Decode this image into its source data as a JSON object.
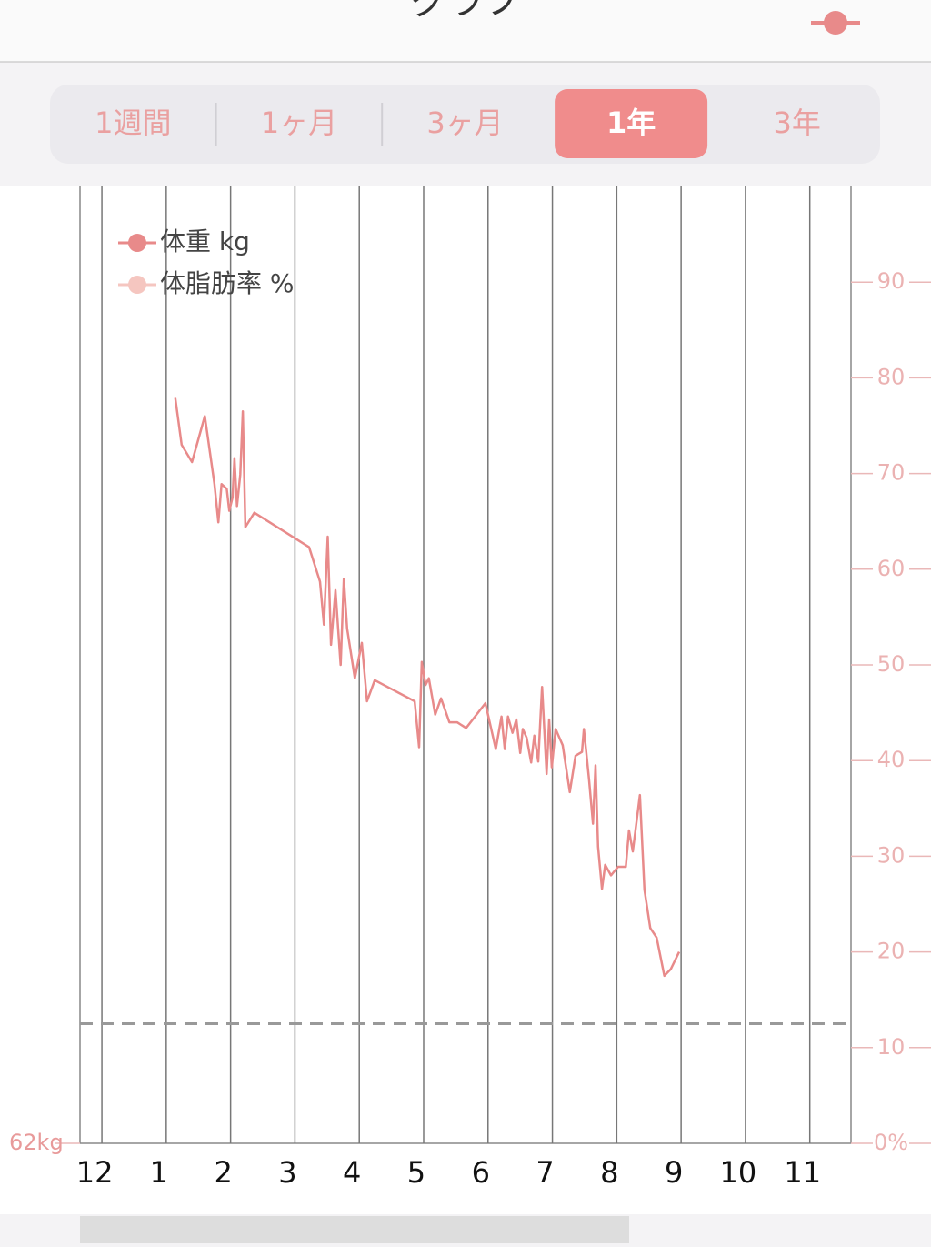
{
  "header": {
    "title": "グラフ"
  },
  "tabs": {
    "labels": [
      "1週間",
      "1ヶ月",
      "3ヶ月",
      "1年",
      "3年"
    ],
    "selected": 3
  },
  "chart_data": {
    "type": "line",
    "left_axis_label": "62kg",
    "xlim": [
      -0.34,
      11.64
    ],
    "xticks": [
      {
        "value": 0,
        "label": "12"
      },
      1,
      2,
      3,
      4,
      5,
      6,
      7,
      8,
      9,
      10,
      11
    ],
    "ylim": [
      0,
      100
    ],
    "yticks": [
      {
        "value": 0,
        "label": "0%"
      },
      10,
      20,
      30,
      40,
      50,
      60,
      70,
      80,
      90
    ],
    "goal_line": 12.5,
    "legend_entries": [
      {
        "name": "体重 kg",
        "color": "#e88a8a"
      },
      {
        "name": "体脂肪率 %",
        "color": "#f5c6c0"
      }
    ],
    "series": [
      {
        "name": "体重 kg",
        "color": "#e88a8a",
        "x": [
          1.14,
          1.24,
          1.4,
          1.6,
          1.75,
          1.81,
          1.86,
          1.94,
          1.98,
          2.03,
          2.06,
          2.1,
          2.15,
          2.19,
          2.23,
          2.37,
          3.22,
          3.39,
          3.45,
          3.51,
          3.56,
          3.63,
          3.71,
          3.76,
          3.81,
          3.93,
          4.04,
          4.12,
          4.24,
          4.86,
          4.93,
          4.97,
          5.03,
          5.08,
          5.18,
          5.27,
          5.4,
          5.52,
          5.66,
          5.96,
          6.12,
          6.21,
          6.26,
          6.31,
          6.38,
          6.44,
          6.5,
          6.54,
          6.6,
          6.67,
          6.72,
          6.78,
          6.84,
          6.91,
          6.95,
          6.99,
          7.05,
          7.16,
          7.27,
          7.36,
          7.46,
          7.49,
          7.57,
          7.63,
          7.67,
          7.71,
          7.77,
          7.82,
          7.91,
          8.02,
          8.14,
          8.19,
          8.25,
          8.36,
          8.43,
          8.52,
          8.62,
          8.74,
          8.84,
          8.97
        ],
        "values": [
          77.9,
          73.0,
          71.2,
          76.0,
          68.9,
          64.9,
          68.9,
          68.4,
          66.1,
          67.5,
          71.6,
          66.6,
          69.9,
          76.5,
          64.4,
          65.9,
          62.3,
          58.7,
          54.2,
          63.4,
          52.1,
          57.8,
          50.0,
          59.0,
          53.8,
          48.6,
          52.3,
          46.2,
          48.4,
          46.2,
          41.4,
          50.3,
          47.9,
          48.6,
          44.8,
          46.5,
          44.0,
          44.0,
          43.4,
          46.0,
          41.2,
          44.6,
          41.2,
          44.6,
          42.9,
          44.3,
          40.8,
          43.3,
          42.4,
          39.8,
          42.6,
          39.9,
          47.7,
          38.6,
          44.3,
          39.3,
          43.3,
          41.6,
          36.7,
          40.5,
          40.9,
          43.3,
          38.0,
          33.4,
          39.5,
          31.0,
          26.6,
          29.1,
          28.0,
          28.9,
          28.9,
          32.7,
          30.5,
          36.4,
          26.5,
          22.5,
          21.5,
          17.5,
          18.2,
          20.0
        ]
      }
    ]
  }
}
